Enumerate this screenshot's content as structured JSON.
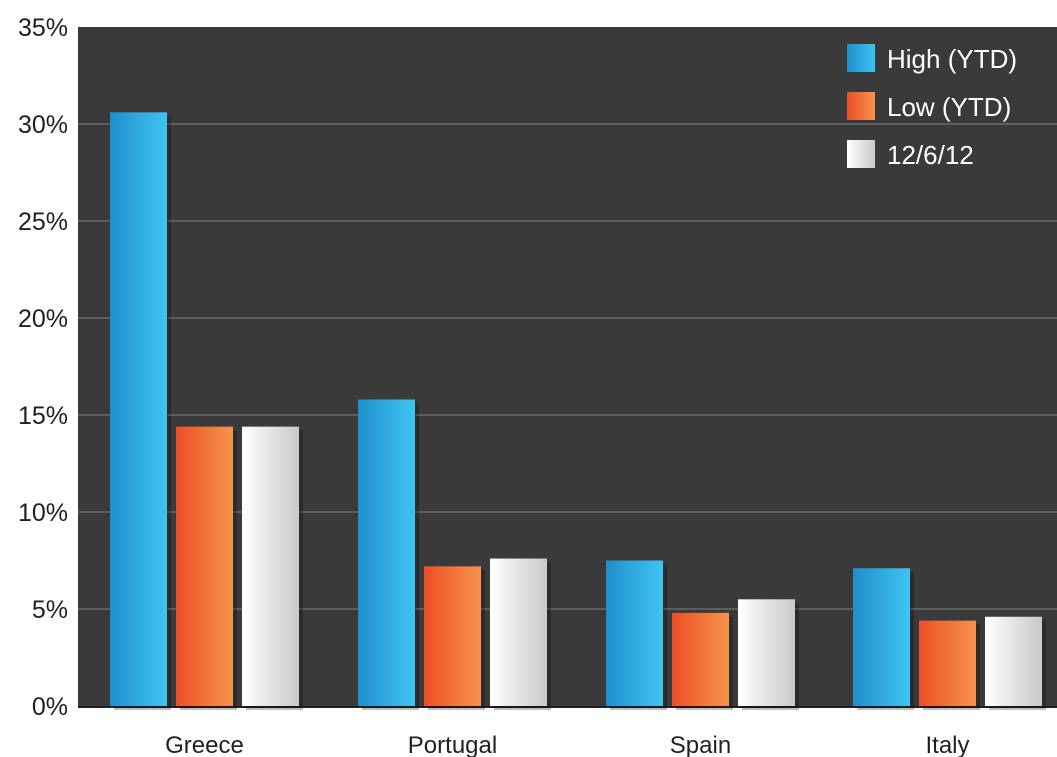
{
  "chart_data": {
    "type": "bar",
    "title": "",
    "xlabel": "",
    "ylabel": "",
    "categories": [
      "Greece",
      "Portugal",
      "Spain",
      "Italy"
    ],
    "series": [
      {
        "name": "High (YTD)",
        "values": [
          30.6,
          15.8,
          7.5,
          7.1
        ],
        "color": "#29a9e0"
      },
      {
        "name": "Low (YTD)",
        "values": [
          14.4,
          7.2,
          4.8,
          4.4
        ],
        "color": "#f26a30"
      },
      {
        "name": "12/6/12",
        "values": [
          14.4,
          7.6,
          5.5,
          4.6
        ],
        "color": "#e6e6e8"
      }
    ],
    "ylim": [
      0,
      35
    ],
    "yticks": [
      "0%",
      "5%",
      "10%",
      "15%",
      "20%",
      "25%",
      "30%",
      "35%"
    ],
    "grid": true,
    "legend_position": "top-right",
    "plot_background": "#3a3a3a",
    "gridline_color": "#6a6a6a"
  }
}
